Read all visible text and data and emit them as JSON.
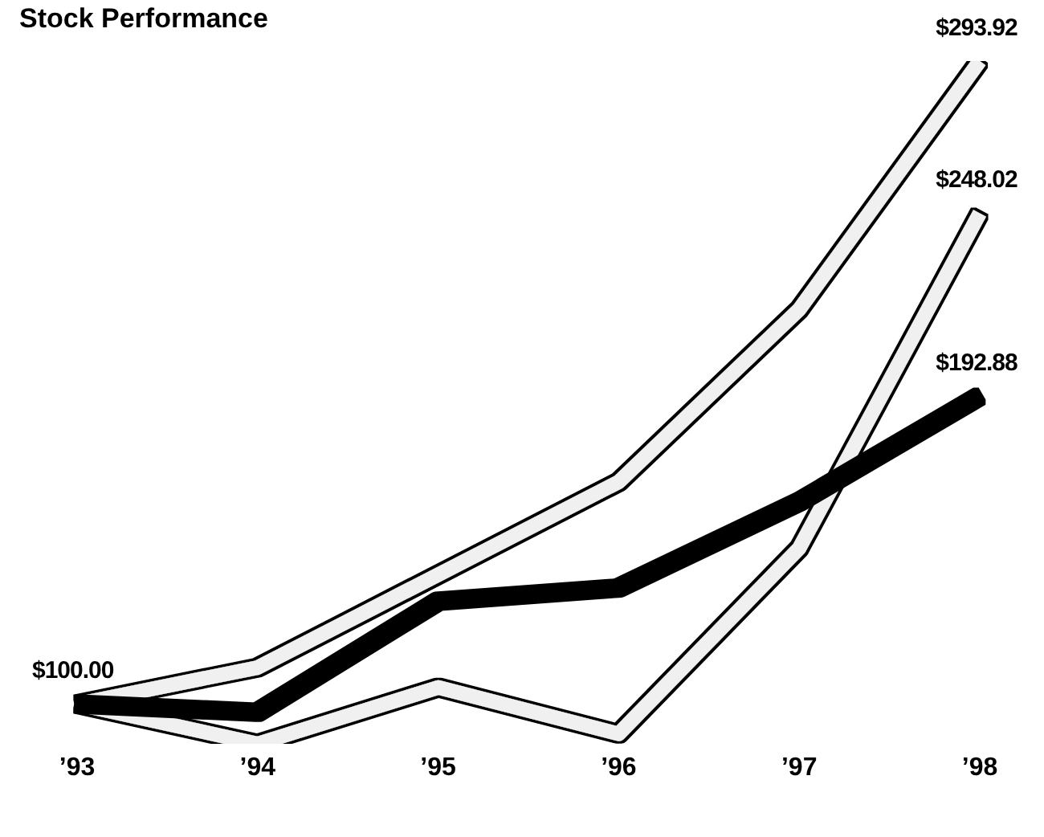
{
  "chart_data": {
    "type": "line",
    "title": "Stock Performance",
    "categories": [
      "’93",
      "’94",
      "’95",
      "’96",
      "’97",
      "’98"
    ],
    "tick_labels": "x",
    "grid": false,
    "legend": false,
    "marker": "none",
    "series": [
      {
        "color": "#f0f0f0",
        "values": [
          100,
          111,
          139,
          167,
          219,
          293.92
        ],
        "value_labels": [
          null,
          null,
          null,
          null,
          null,
          "$293.92"
        ]
      },
      {
        "color": "#f0f0f0",
        "values": [
          100,
          88,
          105,
          91,
          147,
          248.02
        ],
        "value_labels": [
          null,
          null,
          null,
          null,
          null,
          "$248.02"
        ]
      },
      {
        "color": "#000000",
        "values": [
          100,
          97.5,
          131,
          135,
          161,
          192.88
        ],
        "value_labels": [
          "$100.00",
          null,
          null,
          null,
          null,
          "$192.88"
        ]
      }
    ]
  }
}
